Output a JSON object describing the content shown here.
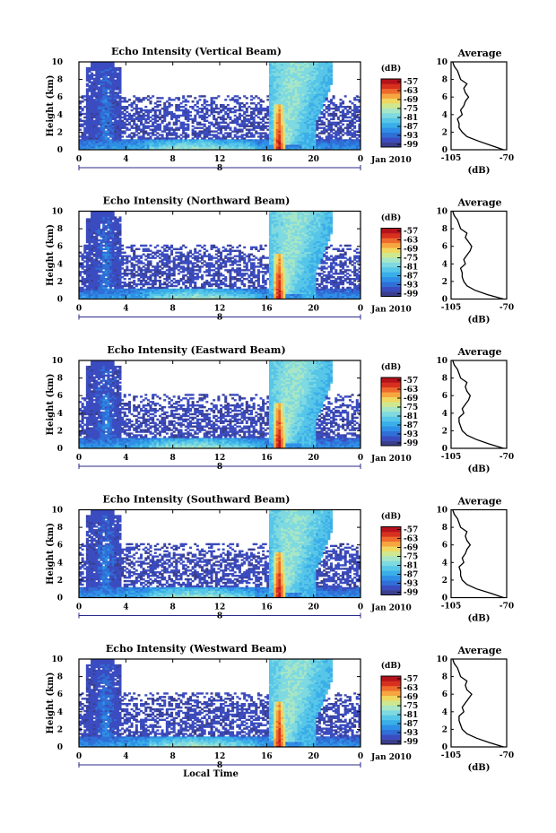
{
  "colors": {
    "scale": [
      "#3a3e8c",
      "#3b4cc0",
      "#2f6fd6",
      "#2f8fe6",
      "#3aaee8",
      "#57c6e8",
      "#7fd9e0",
      "#a7e6c6",
      "#cfe88f",
      "#f0d860",
      "#f6a640",
      "#ee6a2c",
      "#d6301f",
      "#b5121b"
    ],
    "profile": "#000000"
  },
  "chart_data": [
    {
      "type": "heatmap",
      "title": "Echo Intensity (Vertical Beam)",
      "ylabel": "Height (km)",
      "xlabel": "",
      "x_ticks": [
        "0",
        "4",
        "8",
        "12",
        "16",
        "20",
        "0"
      ],
      "x_range": [
        0,
        24
      ],
      "y_ticks": [
        "0",
        "2",
        "4",
        "6",
        "8",
        "10"
      ],
      "ylim": [
        0,
        10
      ],
      "date_day": "8",
      "date_label": "Jan 2010",
      "colorbar": {
        "title": "(dB)",
        "ticks": [
          "-57",
          "-63",
          "-69",
          "-75",
          "-81",
          "-87",
          "-93",
          "-99"
        ]
      },
      "profile": {
        "title": "Average",
        "xlabel": "(dB)",
        "x_ticks": [
          "-105",
          "-70"
        ],
        "xlim": [
          -105,
          -70
        ],
        "y_ticks": [
          "0",
          "2",
          "4",
          "6",
          "8",
          "10"
        ],
        "heights": [
          0,
          0.5,
          1,
          1.5,
          2,
          2.5,
          3,
          3.5,
          4,
          4.5,
          5,
          5.5,
          6,
          6.5,
          7,
          7.5,
          8,
          8.5,
          9,
          9.5,
          10
        ],
        "values": [
          -72,
          -80,
          -88,
          -95,
          -98,
          -100,
          -100,
          -101,
          -98,
          -99,
          -97,
          -96,
          -94,
          -96,
          -97,
          -95,
          -99,
          -100,
          -101,
          -103,
          -104
        ]
      }
    },
    {
      "type": "heatmap",
      "title": "Echo Intensity (Northward Beam)",
      "ylabel": "Height (km)",
      "xlabel": "",
      "x_ticks": [
        "0",
        "4",
        "8",
        "12",
        "16",
        "20",
        "0"
      ],
      "x_range": [
        0,
        24
      ],
      "y_ticks": [
        "0",
        "2",
        "4",
        "6",
        "8",
        "10"
      ],
      "ylim": [
        0,
        10
      ],
      "date_day": "8",
      "date_label": "Jan 2010",
      "colorbar": {
        "title": "(dB)",
        "ticks": [
          "-57",
          "-63",
          "-69",
          "-75",
          "-81",
          "-87",
          "-93",
          "-99"
        ]
      },
      "profile": {
        "title": "Average",
        "xlabel": "(dB)",
        "x_ticks": [
          "-105",
          "-70"
        ],
        "xlim": [
          -105,
          -70
        ],
        "y_ticks": [
          "0",
          "2",
          "4",
          "6",
          "8",
          "10"
        ],
        "heights": [
          0,
          0.5,
          1,
          1.5,
          2,
          2.5,
          3,
          3.5,
          4,
          4.5,
          5,
          5.5,
          6,
          6.5,
          7,
          7.5,
          8,
          8.5,
          9,
          9.5,
          10
        ],
        "values": [
          -72,
          -82,
          -90,
          -95,
          -97,
          -98,
          -98,
          -99,
          -96,
          -97,
          -95,
          -93,
          -92,
          -94,
          -96,
          -95,
          -99,
          -100,
          -101,
          -103,
          -104
        ]
      }
    },
    {
      "type": "heatmap",
      "title": "Echo Intensity (Eastward Beam)",
      "ylabel": "Height (km)",
      "xlabel": "",
      "x_ticks": [
        "0",
        "4",
        "8",
        "12",
        "16",
        "20",
        "0"
      ],
      "x_range": [
        0,
        24
      ],
      "y_ticks": [
        "0",
        "2",
        "4",
        "6",
        "8",
        "10"
      ],
      "ylim": [
        0,
        10
      ],
      "date_day": "8",
      "date_label": "Jan 2010",
      "colorbar": {
        "title": "(dB)",
        "ticks": [
          "-57",
          "-63",
          "-69",
          "-75",
          "-81",
          "-87",
          "-93",
          "-99"
        ]
      },
      "profile": {
        "title": "Average",
        "xlabel": "(dB)",
        "x_ticks": [
          "-105",
          "-70"
        ],
        "xlim": [
          -105,
          -70
        ],
        "y_ticks": [
          "0",
          "2",
          "4",
          "6",
          "8",
          "10"
        ],
        "heights": [
          0,
          0.5,
          1,
          1.5,
          2,
          2.5,
          3,
          3.5,
          4,
          4.5,
          5,
          5.5,
          6,
          6.5,
          7,
          7.5,
          8,
          8.5,
          9,
          9.5,
          10
        ],
        "values": [
          -72,
          -81,
          -89,
          -95,
          -98,
          -99,
          -100,
          -100,
          -97,
          -98,
          -96,
          -94,
          -93,
          -95,
          -96,
          -95,
          -99,
          -100,
          -101,
          -103,
          -104
        ]
      }
    },
    {
      "type": "heatmap",
      "title": "Echo Intensity (Southward Beam)",
      "ylabel": "Height (km)",
      "xlabel": "",
      "x_ticks": [
        "0",
        "4",
        "8",
        "12",
        "16",
        "20",
        "0"
      ],
      "x_range": [
        0,
        24
      ],
      "y_ticks": [
        "0",
        "2",
        "4",
        "6",
        "8",
        "10"
      ],
      "ylim": [
        0,
        10
      ],
      "date_day": "8",
      "date_label": "Jan 2010",
      "colorbar": {
        "title": "(dB)",
        "ticks": [
          "-57",
          "-63",
          "-69",
          "-75",
          "-81",
          "-87",
          "-93",
          "-99"
        ]
      },
      "profile": {
        "title": "Average",
        "xlabel": "(dB)",
        "x_ticks": [
          "-105",
          "-70"
        ],
        "xlim": [
          -105,
          -70
        ],
        "y_ticks": [
          "0",
          "2",
          "4",
          "6",
          "8",
          "10"
        ],
        "heights": [
          0,
          0.5,
          1,
          1.5,
          2,
          2.5,
          3,
          3.5,
          4,
          4.5,
          5,
          5.5,
          6,
          6.5,
          7,
          7.5,
          8,
          8.5,
          9,
          9.5,
          10
        ],
        "values": [
          -72,
          -80,
          -89,
          -95,
          -98,
          -99,
          -99,
          -100,
          -97,
          -98,
          -96,
          -95,
          -93,
          -95,
          -96,
          -95,
          -99,
          -100,
          -101,
          -103,
          -104
        ]
      }
    },
    {
      "type": "heatmap",
      "title": "Echo Intensity (Westward Beam)",
      "ylabel": "Height (km)",
      "xlabel": "Local Time",
      "x_ticks": [
        "0",
        "4",
        "8",
        "12",
        "16",
        "20",
        "0"
      ],
      "x_range": [
        0,
        24
      ],
      "y_ticks": [
        "0",
        "2",
        "4",
        "6",
        "8",
        "10"
      ],
      "ylim": [
        0,
        10
      ],
      "date_day": "8",
      "date_label": "Jan 2010",
      "colorbar": {
        "title": "(dB)",
        "ticks": [
          "-57",
          "-63",
          "-69",
          "-75",
          "-81",
          "-87",
          "-93",
          "-99"
        ]
      },
      "profile": {
        "title": "Average",
        "xlabel": "(dB)",
        "x_ticks": [
          "-105",
          "-70"
        ],
        "xlim": [
          -105,
          -70
        ],
        "y_ticks": [
          "0",
          "2",
          "4",
          "6",
          "8",
          "10"
        ],
        "heights": [
          0,
          0.5,
          1,
          1.5,
          2,
          2.5,
          3,
          3.5,
          4,
          4.5,
          5,
          5.5,
          6,
          6.5,
          7,
          7.5,
          8,
          8.5,
          9,
          9.5,
          10
        ],
        "values": [
          -72,
          -81,
          -89,
          -95,
          -98,
          -99,
          -100,
          -100,
          -97,
          -98,
          -96,
          -94,
          -92,
          -95,
          -96,
          -95,
          -99,
          -100,
          -101,
          -103,
          -104
        ]
      }
    }
  ]
}
